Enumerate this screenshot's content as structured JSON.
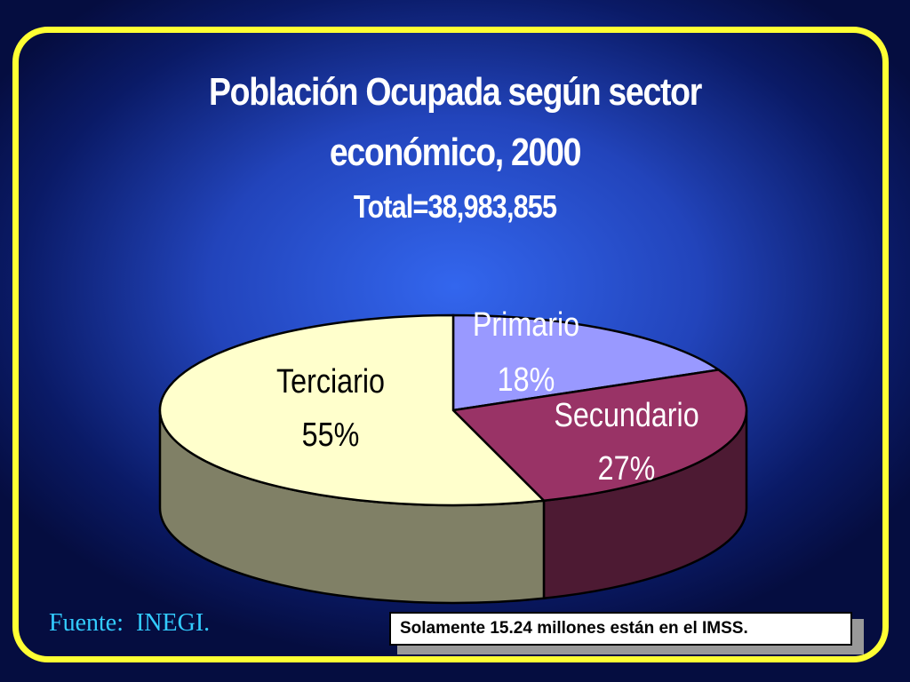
{
  "chart_data": {
    "type": "pie3d",
    "title": "Población Ocupada según sector económico, 2000",
    "subtitle": "Total=38,983,855",
    "categories": [
      "Primario",
      "Secundario",
      "Terciario"
    ],
    "values": [
      18,
      27,
      55
    ],
    "value_labels": [
      "18%",
      "27%",
      "55%"
    ],
    "colors": [
      "#9999ff",
      "#993366",
      "#ffffcc"
    ]
  },
  "source": "Fuente:  INEGI.",
  "note": "Solamente 15.24 millones están en el IMSS."
}
